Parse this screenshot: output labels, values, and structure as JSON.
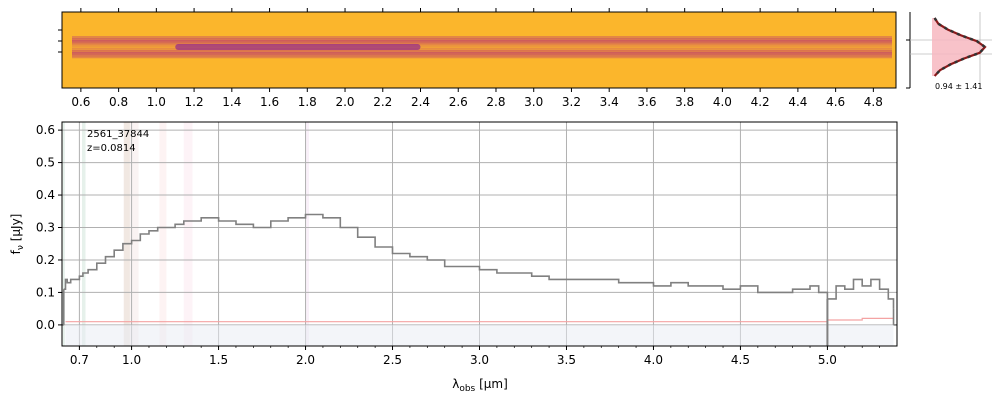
{
  "chart_data": [
    {
      "type": "heatmap",
      "panel": "2d-spectrum",
      "colormap": "plasma",
      "top_axis_ticks": [
        "0.6",
        "0.8",
        "1.0",
        "1.2",
        "1.4",
        "1.6",
        "1.8",
        "2.0",
        "2.2",
        "2.4",
        "2.6",
        "2.8",
        "3.0",
        "3.2",
        "3.4",
        "3.6",
        "3.8",
        "4.0",
        "4.2",
        "4.4",
        "4.6",
        "4.8"
      ],
      "top_axis_tick_values": [
        0.6,
        0.8,
        1.0,
        1.2,
        1.4,
        1.6,
        1.8,
        2.0,
        2.2,
        2.4,
        2.6,
        2.8,
        3.0,
        3.2,
        3.4,
        3.6,
        3.8,
        4.0,
        4.2,
        4.4,
        4.6,
        4.8
      ],
      "trace_profile": [
        0.55,
        0.75,
        0.95,
        0.7,
        0.4,
        0.25,
        0.4,
        0.7,
        0.95,
        0.75,
        0.55
      ],
      "xlim": [
        0.5,
        4.92
      ]
    },
    {
      "type": "line",
      "panel": "profile-histogram",
      "annotation": "0.94 ± 1.41",
      "profile": [
        0.05,
        0.12,
        0.3,
        0.55,
        0.85,
        1.0,
        0.9,
        0.6,
        0.35,
        0.15,
        0.05
      ]
    },
    {
      "type": "line",
      "panel": "1d-spectrum",
      "annotation_lines": [
        "2561_37844",
        "z=0.0814"
      ],
      "xlabel": "λ_obs [μm]",
      "ylabel": "f_ν [μJy]",
      "xlim": [
        0.6,
        5.4
      ],
      "ylim": [
        -0.065,
        0.625
      ],
      "x_ticks": [
        0.7,
        1.0,
        1.5,
        2.0,
        2.5,
        3.0,
        3.5,
        4.0,
        4.5,
        5.0
      ],
      "x_tick_labels": [
        "0.7",
        "1.0",
        "1.5",
        "2.0",
        "2.5",
        "3.0",
        "3.5",
        "4.0",
        "4.5",
        "5.0"
      ],
      "y_ticks": [
        0.0,
        0.1,
        0.2,
        0.3,
        0.4,
        0.5,
        0.6
      ],
      "y_tick_labels": [
        "0.0",
        "0.1",
        "0.2",
        "0.3",
        "0.4",
        "0.5",
        "0.6"
      ],
      "grid": true,
      "series": [
        {
          "role": "flux",
          "color": "#808080",
          "x": [
            0.61,
            0.62,
            0.63,
            0.65,
            0.67,
            0.7,
            0.72,
            0.75,
            0.8,
            0.85,
            0.9,
            0.95,
            1.0,
            1.05,
            1.1,
            1.15,
            1.2,
            1.25,
            1.3,
            1.35,
            1.4,
            1.5,
            1.6,
            1.7,
            1.8,
            1.9,
            2.0,
            2.05,
            2.1,
            2.2,
            2.3,
            2.4,
            2.5,
            2.6,
            2.7,
            2.8,
            2.9,
            3.0,
            3.1,
            3.2,
            3.3,
            3.4,
            3.5,
            3.6,
            3.7,
            3.8,
            3.9,
            4.0,
            4.1,
            4.2,
            4.3,
            4.4,
            4.5,
            4.6,
            4.7,
            4.8,
            4.9,
            4.95,
            5.0,
            5.05,
            5.1,
            5.15,
            5.2,
            5.25,
            5.3,
            5.35,
            5.38
          ],
          "y": [
            0.11,
            0.14,
            0.13,
            0.14,
            0.14,
            0.15,
            0.16,
            0.17,
            0.19,
            0.21,
            0.23,
            0.25,
            0.26,
            0.28,
            0.29,
            0.3,
            0.3,
            0.31,
            0.32,
            0.32,
            0.33,
            0.32,
            0.31,
            0.3,
            0.32,
            0.33,
            0.34,
            0.34,
            0.33,
            0.3,
            0.27,
            0.24,
            0.22,
            0.21,
            0.2,
            0.18,
            0.18,
            0.17,
            0.16,
            0.16,
            0.15,
            0.14,
            0.14,
            0.14,
            0.14,
            0.13,
            0.13,
            0.12,
            0.13,
            0.12,
            0.12,
            0.11,
            0.12,
            0.1,
            0.1,
            0.11,
            0.12,
            0.1,
            0.08,
            0.12,
            0.11,
            0.14,
            0.12,
            0.14,
            0.11,
            0.08,
            0.05
          ]
        },
        {
          "role": "uncertainty",
          "color": "#f4a3a3",
          "x": [
            0.62,
            1.0,
            2.0,
            3.0,
            4.0,
            4.5,
            5.0,
            5.2,
            5.38
          ],
          "y": [
            0.01,
            0.01,
            0.01,
            0.01,
            0.01,
            0.01,
            0.015,
            0.02,
            0.02
          ]
        }
      ],
      "line_bands": [
        {
          "x": [
            0.605,
            0.615
          ],
          "color": "#2e8b57"
        },
        {
          "x": [
            0.715,
            0.735
          ],
          "color": "#2e8b57"
        },
        {
          "x": [
            0.955,
            0.99
          ],
          "color": "#8b4513"
        },
        {
          "x": [
            0.99,
            1.04
          ],
          "color": "#d9a0a0"
        },
        {
          "x": [
            1.16,
            1.2
          ],
          "color": "#f2a0a0"
        },
        {
          "x": [
            1.3,
            1.35
          ],
          "color": "#f2a0c0"
        },
        {
          "x": [
            2.0,
            2.02
          ],
          "color": "#d080d0"
        }
      ]
    }
  ]
}
